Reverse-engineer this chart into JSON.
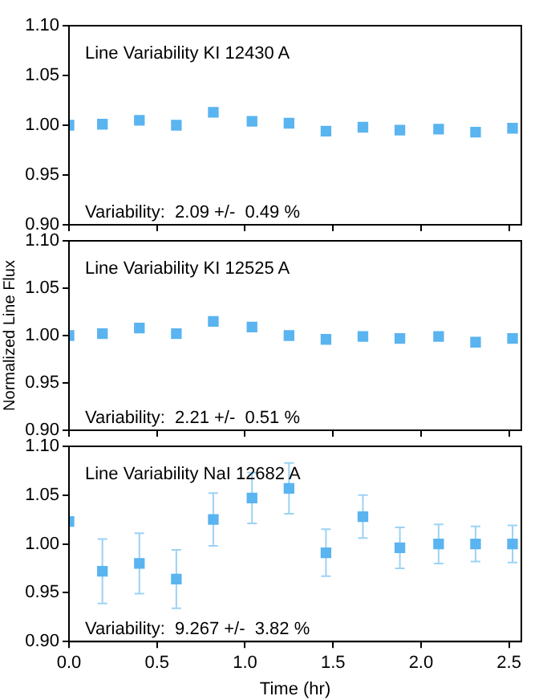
{
  "chart_data": [
    {
      "type": "scatter",
      "title": "Line Variability KI 12430 A",
      "annotations": [
        "Variability:  2.09 +/-  0.49 %"
      ],
      "x": [
        0,
        0.19,
        0.4,
        0.61,
        0.82,
        1.04,
        1.25,
        1.46,
        1.67,
        1.88,
        2.1,
        2.31,
        2.52
      ],
      "series": [
        {
          "color": "#5ab4f0",
          "values": [
            1.0,
            1.001,
            1.005,
            1.0,
            1.013,
            1.004,
            1.002,
            0.994,
            0.998,
            0.995,
            0.996,
            0.993,
            0.997
          ]
        }
      ],
      "xlim": [
        0,
        2.57
      ],
      "xticks": [
        0,
        0.5,
        1,
        1.5,
        2,
        2.5
      ],
      "ylim": [
        0.9,
        1.1
      ],
      "yticks": [
        {
          "value": 0.9,
          "label": "0.90"
        },
        {
          "value": 0.95,
          "label": "0.95"
        },
        {
          "value": 1.0,
          "label": "1.00"
        },
        {
          "value": 1.05,
          "label": "1.05"
        },
        {
          "value": 1.1,
          "label": "1.10"
        }
      ],
      "tick_labels": "y",
      "marker": "square",
      "grid": false,
      "legend": false
    },
    {
      "type": "scatter",
      "title": "Line Variability KI 12525 A",
      "ylabel": "Normalized Line Flux",
      "annotations": [
        "Variability:  2.21 +/-  0.51 %"
      ],
      "x": [
        0,
        0.19,
        0.4,
        0.61,
        0.82,
        1.04,
        1.25,
        1.46,
        1.67,
        1.88,
        2.1,
        2.31,
        2.52
      ],
      "series": [
        {
          "color": "#5ab4f0",
          "values": [
            1.0,
            1.002,
            1.008,
            1.002,
            1.015,
            1.009,
            1.0,
            0.996,
            0.999,
            0.997,
            0.999,
            0.993,
            0.997
          ]
        }
      ],
      "xlim": [
        0,
        2.57
      ],
      "xticks": [
        0,
        0.5,
        1,
        1.5,
        2,
        2.5
      ],
      "ylim": [
        0.9,
        1.1
      ],
      "yticks": [
        {
          "value": 0.9,
          "label": "0.90"
        },
        {
          "value": 0.95,
          "label": "0.95"
        },
        {
          "value": 1.0,
          "label": "1.00"
        },
        {
          "value": 1.05,
          "label": "1.05"
        },
        {
          "value": 1.1,
          "label": "1.10"
        }
      ],
      "tick_labels": "y",
      "marker": "square",
      "grid": false,
      "legend": false
    },
    {
      "type": "scatter",
      "title": "Line Variability NaI 12682 A",
      "xlabel": "Time (hr)",
      "annotations": [
        "Variability:  9.267 +/-  3.82 %"
      ],
      "x": [
        0,
        0.19,
        0.4,
        0.61,
        0.82,
        1.04,
        1.25,
        1.46,
        1.67,
        1.88,
        2.1,
        2.31,
        2.52
      ],
      "series": [
        {
          "color": "#5ab4f0",
          "values": [
            1.023,
            0.972,
            0.98,
            0.964,
            1.025,
            1.047,
            1.057,
            0.991,
            1.028,
            0.996,
            1.0,
            1.0,
            1.0
          ],
          "errors": [
            null,
            0.033,
            0.031,
            0.03,
            0.027,
            0.026,
            0.026,
            0.024,
            0.022,
            0.021,
            0.02,
            0.018,
            0.019
          ]
        }
      ],
      "xlim": [
        0,
        2.57
      ],
      "xticks": [
        {
          "value": 0,
          "label": "0.0"
        },
        0.5,
        {
          "value": 1,
          "label": "1.0"
        },
        1.5,
        {
          "value": 2,
          "label": "2.0"
        },
        2.5
      ],
      "ylim": [
        0.9,
        1.1
      ],
      "yticks": [
        {
          "value": 0.9,
          "label": "0.90"
        },
        {
          "value": 0.95,
          "label": "0.95"
        },
        {
          "value": 1.0,
          "label": "1.00"
        },
        {
          "value": 1.05,
          "label": "1.05"
        },
        {
          "value": 1.1,
          "label": "1.10"
        }
      ],
      "marker": "square",
      "grid": false,
      "legend": false
    }
  ]
}
